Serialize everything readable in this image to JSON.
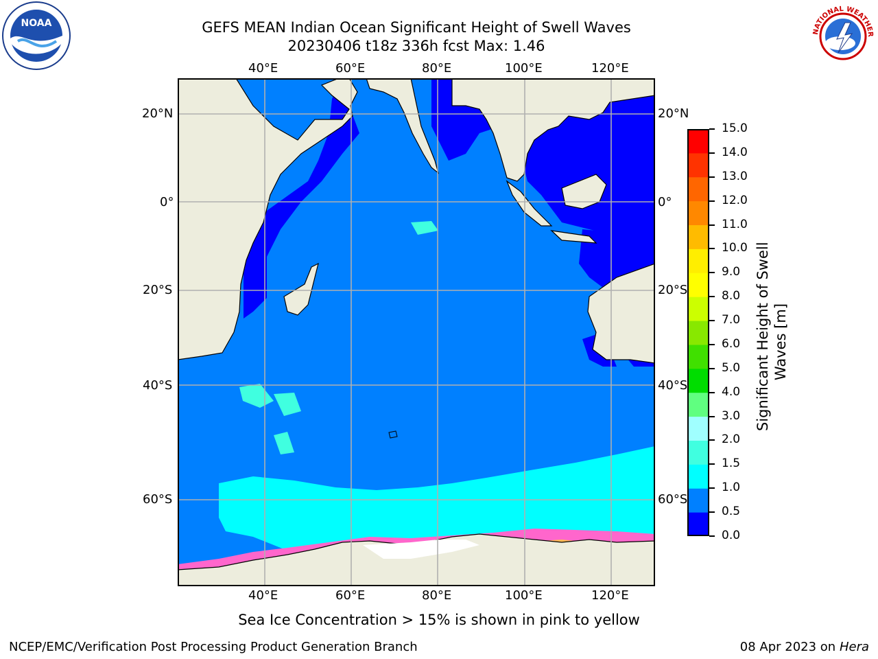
{
  "title": {
    "line1": "GEFS MEAN Indian Ocean Significant Height of Swell Waves",
    "line2": "20230406 t18z 336h fcst   Max: 1.46"
  },
  "logos": {
    "left": {
      "icon": "noaa-logo",
      "text": "NOAA"
    },
    "right": {
      "icon": "nws-logo",
      "text": "NATIONAL WEATHER SERVICE"
    }
  },
  "map": {
    "lon_labels": [
      "40°E",
      "60°E",
      "80°E",
      "100°E",
      "120°E"
    ],
    "lat_labels": [
      "20°N",
      "0°",
      "20°S",
      "40°S",
      "60°S"
    ]
  },
  "colorbar": {
    "title_line1": "Significant Height of Swell",
    "title_line2": "Waves [m]",
    "ticks": [
      "0.0",
      "0.5",
      "1.0",
      "1.5",
      "2.0",
      "3.0",
      "4.0",
      "5.0",
      "6.0",
      "7.0",
      "8.0",
      "9.0",
      "10.0",
      "11.0",
      "12.0",
      "13.0",
      "14.0",
      "15.0"
    ],
    "colors": [
      "#0000ff",
      "#0080ff",
      "#00ffff",
      "#40ffe0",
      "#a0ffff",
      "#60ff80",
      "#00dd00",
      "#40e000",
      "#88e800",
      "#ccff00",
      "#ffff00",
      "#ffee00",
      "#ffbb00",
      "#ff8800",
      "#ff6600",
      "#ff3300",
      "#ff0000"
    ]
  },
  "note": "Sea Ice Concentration > 15% is shown in pink to yellow",
  "footer": {
    "left": "NCEP/EMC/Verification Post Processing Product Generation Branch",
    "date": "08 Apr 2023 on ",
    "host": "Hera"
  }
}
